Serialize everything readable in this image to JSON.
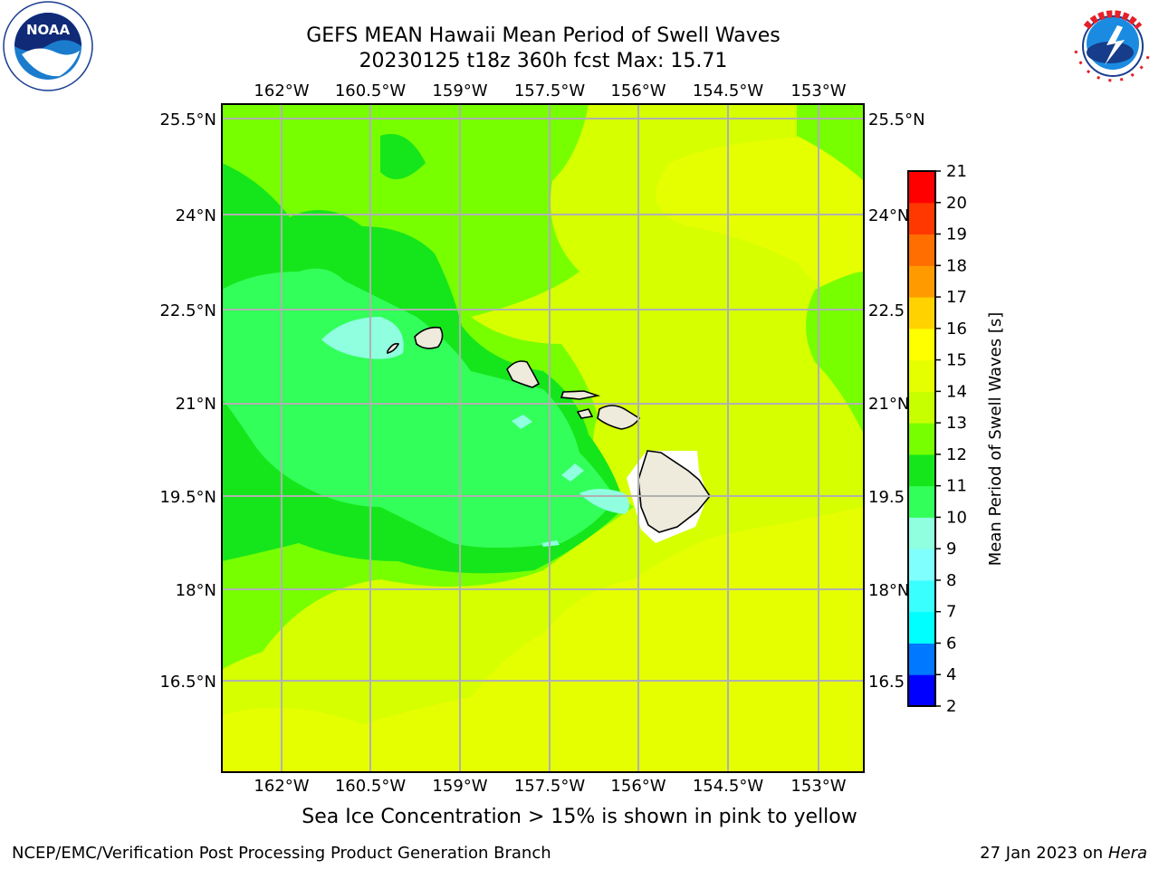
{
  "title": {
    "line1": "GEFS MEAN Hawaii Mean Period of Swell Waves",
    "line2": "20230125 t18z 360h fcst   Max: 15.71"
  },
  "logos": {
    "noaa_text": "NOAA",
    "noaa_ring": "NATIONAL OCEANIC AND ATMOSPHERIC ADMINISTRATION · U.S. DEPARTMENT OF COMMERCE",
    "nws_ring": "NATIONAL WEATHER SERVICE"
  },
  "axes": {
    "lon_ticks": [
      "162°W",
      "160.5°W",
      "159°W",
      "157.5°W",
      "156°W",
      "154.5°W",
      "153°W"
    ],
    "lat_ticks": [
      "25.5°N",
      "24°N",
      "22.5°N",
      "21°N",
      "19.5°N",
      "18°N",
      "16.5°N"
    ],
    "lat_ticks_right": [
      "25.5°N",
      "24°N",
      "22.5",
      "21°N",
      "19.5",
      "18°N",
      "16.5"
    ]
  },
  "colorbar": {
    "label": "Mean Period of Swell Waves [s]",
    "tick_labels": [
      "2",
      "4",
      "6",
      "7",
      "8",
      "9",
      "10",
      "11",
      "12",
      "13",
      "14",
      "15",
      "16",
      "17",
      "18",
      "19",
      "20",
      "21"
    ],
    "colors": [
      "#0000ff",
      "#0078ff",
      "#00ffff",
      "#39ffff",
      "#80ffff",
      "#8fffe0",
      "#32ff5a",
      "#15e61b",
      "#77ff00",
      "#c8ff00",
      "#e6ff00",
      "#ffff00",
      "#ffd200",
      "#ff9b00",
      "#ff6e00",
      "#ff3700",
      "#ff0000"
    ]
  },
  "chart_data": {
    "type": "heatmap",
    "title": "GEFS MEAN Hawaii Mean Period of Swell Waves",
    "variable": "Mean Period of Swell Waves [s]",
    "max_value": 15.71,
    "levels": [
      2,
      4,
      6,
      7,
      8,
      9,
      10,
      11,
      12,
      13,
      14,
      15,
      16,
      17,
      18,
      19,
      20,
      21
    ],
    "lon_range": [
      "162.6°W",
      "152.4°W"
    ],
    "lat_range": [
      "15.0°N",
      "25.6°N"
    ],
    "grid": true
  },
  "notes": {
    "sea_ice": "Sea Ice Concentration > 15% is shown in pink to yellow"
  },
  "footer": {
    "left": "NCEP/EMC/Verification Post Processing Product Generation Branch",
    "right_date": "27 Jan 2023 on ",
    "right_machine": "Hera"
  }
}
